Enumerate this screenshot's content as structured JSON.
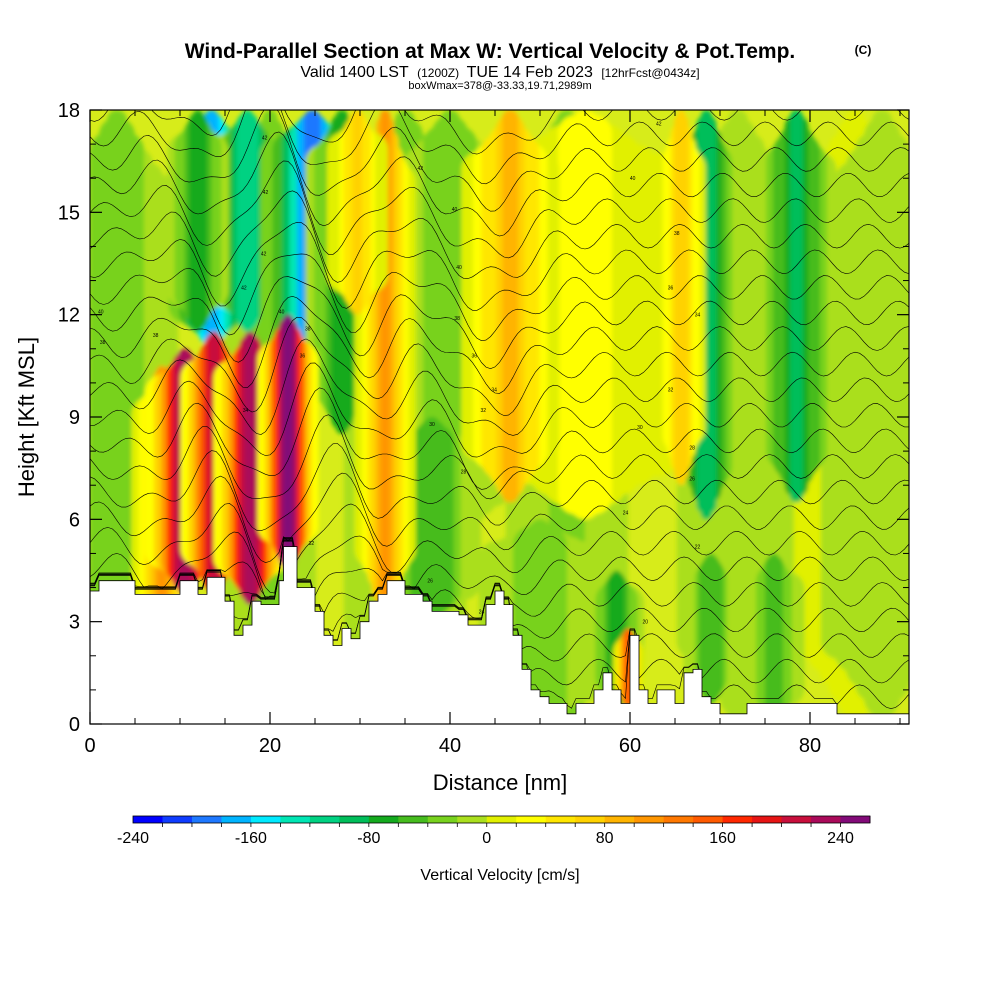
{
  "title": {
    "main": "Wind-Parallel Section at Max W: Vertical Velocity & Pot.Temp.",
    "copyright": "(C)",
    "valid_prefix": "Valid 1400 LST",
    "valid_utc": "(1200Z)",
    "valid_date": "TUE 14 Feb 2023",
    "forecast": "[12hrFcst@0434z]",
    "box": "boxWmax=378@-33.33,19.71,2989m"
  },
  "chart_data": {
    "type": "heatmap",
    "xlabel": "Distance [nm]",
    "ylabel": "Height [Kft MSL]",
    "xlim": [
      0,
      91
    ],
    "ylim": [
      0,
      18
    ],
    "xticks": [
      0,
      20,
      40,
      60,
      80
    ],
    "yticks": [
      0,
      3,
      6,
      9,
      12,
      15,
      18
    ],
    "terrain": [
      [
        0,
        3.9
      ],
      [
        1,
        3.9
      ],
      [
        1,
        4.2
      ],
      [
        5,
        4.2
      ],
      [
        5,
        3.8
      ],
      [
        10,
        3.8
      ],
      [
        10,
        4.2
      ],
      [
        12,
        4.2
      ],
      [
        12,
        3.8
      ],
      [
        13,
        3.8
      ],
      [
        13,
        4.3
      ],
      [
        15,
        4.3
      ],
      [
        15,
        3.6
      ],
      [
        16,
        3.6
      ],
      [
        16,
        2.6
      ],
      [
        17,
        2.6
      ],
      [
        17,
        2.9
      ],
      [
        18,
        2.9
      ],
      [
        18,
        3.6
      ],
      [
        19,
        3.6
      ],
      [
        19,
        3.5
      ],
      [
        21,
        3.5
      ],
      [
        21,
        4.2
      ],
      [
        21.5,
        4.2
      ],
      [
        21.5,
        5.2
      ],
      [
        23,
        5.2
      ],
      [
        23,
        4.0
      ],
      [
        25,
        4.0
      ],
      [
        25,
        3.3
      ],
      [
        26,
        3.3
      ],
      [
        26,
        2.6
      ],
      [
        27,
        2.6
      ],
      [
        27,
        2.3
      ],
      [
        28,
        2.3
      ],
      [
        28,
        2.8
      ],
      [
        29,
        2.8
      ],
      [
        29,
        2.5
      ],
      [
        30,
        2.5
      ],
      [
        30,
        3.0
      ],
      [
        31,
        3.0
      ],
      [
        31,
        3.6
      ],
      [
        32,
        3.6
      ],
      [
        32,
        3.8
      ],
      [
        33,
        3.8
      ],
      [
        33,
        4.2
      ],
      [
        35,
        4.2
      ],
      [
        35,
        3.8
      ],
      [
        37,
        3.8
      ],
      [
        37,
        3.6
      ],
      [
        38,
        3.6
      ],
      [
        38,
        3.3
      ],
      [
        41,
        3.3
      ],
      [
        41,
        3.2
      ],
      [
        42,
        3.2
      ],
      [
        42,
        2.9
      ],
      [
        44,
        2.9
      ],
      [
        44,
        3.5
      ],
      [
        45,
        3.5
      ],
      [
        45,
        3.9
      ],
      [
        46,
        3.9
      ],
      [
        46,
        3.5
      ],
      [
        47,
        3.5
      ],
      [
        47,
        2.6
      ],
      [
        48,
        2.6
      ],
      [
        48,
        1.6
      ],
      [
        49,
        1.6
      ],
      [
        49,
        1.0
      ],
      [
        50,
        1.0
      ],
      [
        50,
        0.8
      ],
      [
        51,
        0.8
      ],
      [
        51,
        0.6
      ],
      [
        53,
        0.6
      ],
      [
        53,
        0.3
      ],
      [
        54,
        0.3
      ],
      [
        54,
        0.6
      ],
      [
        56,
        0.6
      ],
      [
        56,
        1.0
      ],
      [
        57,
        1.0
      ],
      [
        57,
        1.5
      ],
      [
        58,
        1.5
      ],
      [
        58,
        1.0
      ],
      [
        59,
        1.0
      ],
      [
        59,
        0.6
      ],
      [
        60,
        0.6
      ],
      [
        60,
        2.6
      ],
      [
        61,
        2.6
      ],
      [
        61,
        1.0
      ],
      [
        62,
        1.0
      ],
      [
        62,
        0.6
      ],
      [
        63,
        0.6
      ],
      [
        63,
        1.0
      ],
      [
        65,
        1.0
      ],
      [
        65,
        0.6
      ],
      [
        66,
        0.6
      ],
      [
        66,
        1.5
      ],
      [
        67,
        1.5
      ],
      [
        67,
        1.6
      ],
      [
        68,
        1.6
      ],
      [
        68,
        0.8
      ],
      [
        69,
        0.8
      ],
      [
        69,
        0.6
      ],
      [
        70,
        0.6
      ],
      [
        70,
        0.3
      ],
      [
        73,
        0.3
      ],
      [
        73,
        0.6
      ],
      [
        83,
        0.6
      ],
      [
        83,
        0.3
      ],
      [
        91,
        0.3
      ]
    ],
    "updrafts": [
      {
        "x": 8.0,
        "w": 1.0,
        "ybot": 2.0,
        "ytop": 10.5,
        "v": 110
      },
      {
        "x": 10.5,
        "w": 1.3,
        "ybot": 3.8,
        "ytop": 11.0,
        "v": 235
      },
      {
        "x": 13.8,
        "w": 1.1,
        "ybot": 3.8,
        "ytop": 11.5,
        "v": 200
      },
      {
        "x": 17.8,
        "w": 1.2,
        "ybot": 3.5,
        "ytop": 11.5,
        "v": 235
      },
      {
        "x": 22.0,
        "w": 1.0,
        "ybot": 4.5,
        "ytop": 12.0,
        "v": 245
      },
      {
        "x": 32.8,
        "w": 1.0,
        "ybot": 3.0,
        "ytop": 18.0,
        "v": 110
      },
      {
        "x": 46.7,
        "w": 1.6,
        "ybot": 6.5,
        "ytop": 18.0,
        "v": 85
      },
      {
        "x": 59.8,
        "w": 0.5,
        "ybot": 0.5,
        "ytop": 2.8,
        "v": 150
      },
      {
        "x": 65.7,
        "w": 0.8,
        "ybot": 7.0,
        "ytop": 18.0,
        "v": 75
      },
      {
        "x": 29.7,
        "w": 1.0,
        "ybot": 12.0,
        "ytop": 18.0,
        "v": 60
      }
    ],
    "downdrafts": [
      {
        "x": 13.5,
        "w": 1.4,
        "ybot": 11.0,
        "ytop": 18.0,
        "v": -175
      },
      {
        "x": 17.5,
        "w": 1.2,
        "ybot": 11.5,
        "ytop": 18.0,
        "v": -120
      },
      {
        "x": 24.7,
        "w": 1.7,
        "ybot": 10.5,
        "ytop": 18.0,
        "v": -195
      },
      {
        "x": 28.0,
        "w": 1.2,
        "ybot": 8.5,
        "ytop": 18.0,
        "v": -80
      },
      {
        "x": 68.5,
        "w": 1.1,
        "ybot": 6.0,
        "ytop": 18.0,
        "v": -90
      },
      {
        "x": 78.5,
        "w": 1.3,
        "ybot": 6.5,
        "ytop": 18.0,
        "v": -85
      },
      {
        "x": 38.0,
        "w": 1.6,
        "ybot": 3.0,
        "ytop": 9.0,
        "v": -60
      },
      {
        "x": 58.5,
        "w": 0.9,
        "ybot": 0.5,
        "ytop": 4.5,
        "v": -70
      },
      {
        "x": 69.0,
        "w": 0.9,
        "ybot": 0.6,
        "ytop": 5.0,
        "v": -60
      },
      {
        "x": 12.0,
        "w": 1.0,
        "ybot": 11.5,
        "ytop": 18.0,
        "v": -70
      }
    ],
    "contour_levels": 24,
    "contour_labels": [
      {
        "x": 19.4,
        "y": 17.2,
        "text": "42"
      },
      {
        "x": 19.5,
        "y": 15.6,
        "text": "42"
      },
      {
        "x": 19.3,
        "y": 13.8,
        "text": "42"
      },
      {
        "x": 17.1,
        "y": 12.8,
        "text": "42"
      },
      {
        "x": 21.3,
        "y": 12.1,
        "text": "40"
      },
      {
        "x": 1.2,
        "y": 12.1,
        "text": "40"
      },
      {
        "x": 1.4,
        "y": 11.2,
        "text": "38"
      },
      {
        "x": 7.3,
        "y": 11.4,
        "text": "38"
      },
      {
        "x": 23.6,
        "y": 10.8,
        "text": "36"
      },
      {
        "x": 24.2,
        "y": 11.6,
        "text": "38"
      },
      {
        "x": 17.3,
        "y": 9.2,
        "text": "34"
      },
      {
        "x": 36.7,
        "y": 16.3,
        "text": "42"
      },
      {
        "x": 40.5,
        "y": 15.1,
        "text": "40"
      },
      {
        "x": 41.0,
        "y": 13.4,
        "text": "40"
      },
      {
        "x": 40.8,
        "y": 11.9,
        "text": "38"
      },
      {
        "x": 42.7,
        "y": 10.8,
        "text": "36"
      },
      {
        "x": 43.7,
        "y": 9.2,
        "text": "32"
      },
      {
        "x": 44.9,
        "y": 9.8,
        "text": "34"
      },
      {
        "x": 38.0,
        "y": 8.8,
        "text": "30"
      },
      {
        "x": 41.5,
        "y": 7.4,
        "text": "28"
      },
      {
        "x": 37.8,
        "y": 4.2,
        "text": "26"
      },
      {
        "x": 43.5,
        "y": 3.3,
        "text": "24"
      },
      {
        "x": 24.6,
        "y": 5.3,
        "text": "32"
      },
      {
        "x": 63.2,
        "y": 17.6,
        "text": "42"
      },
      {
        "x": 60.3,
        "y": 16.0,
        "text": "40"
      },
      {
        "x": 65.2,
        "y": 14.4,
        "text": "38"
      },
      {
        "x": 64.5,
        "y": 12.8,
        "text": "36"
      },
      {
        "x": 67.5,
        "y": 12.0,
        "text": "34"
      },
      {
        "x": 64.5,
        "y": 9.8,
        "text": "32"
      },
      {
        "x": 61.1,
        "y": 8.7,
        "text": "30"
      },
      {
        "x": 66.9,
        "y": 8.1,
        "text": "28"
      },
      {
        "x": 66.9,
        "y": 7.2,
        "text": "26"
      },
      {
        "x": 59.5,
        "y": 6.2,
        "text": "24"
      },
      {
        "x": 67.5,
        "y": 5.2,
        "text": "22"
      },
      {
        "x": 61.7,
        "y": 3.0,
        "text": "20"
      }
    ]
  },
  "colorbar": {
    "title": "Vertical Velocity [cm/s]",
    "min": -240,
    "max": 260,
    "labels": [
      "-240",
      "-160",
      "-80",
      "0",
      "80",
      "160",
      "240"
    ],
    "label_values": [
      -240,
      -160,
      -80,
      0,
      80,
      160,
      240
    ],
    "colors": [
      "#0000ff",
      "#0f3cff",
      "#1e78ff",
      "#00b4ff",
      "#00eaff",
      "#00e6b4",
      "#00d282",
      "#00be5a",
      "#14aa1e",
      "#46bc1e",
      "#78d21e",
      "#aadf1e",
      "#e1f000",
      "#ffff00",
      "#ffe600",
      "#ffd200",
      "#ffb400",
      "#ff9600",
      "#ff7800",
      "#ff5a00",
      "#ff2800",
      "#e61414",
      "#c80f3c",
      "#aa0a5a",
      "#820a78"
    ]
  }
}
